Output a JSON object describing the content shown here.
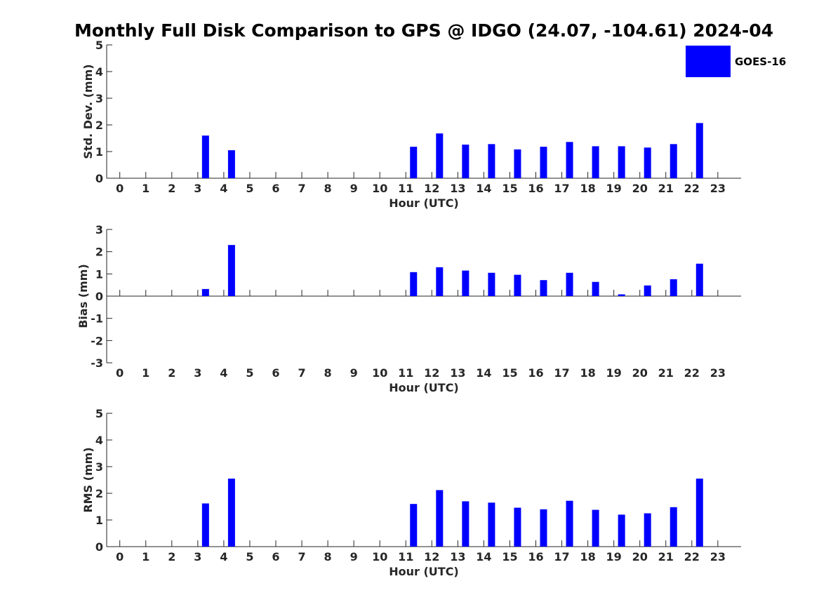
{
  "title": "Monthly Full Disk Comparison to GPS @ IDGO (24.07, -104.61) 2024-04",
  "legend": {
    "label": "GOES-16",
    "color": "#0000ff",
    "placement": "top-right"
  },
  "chart_data": [
    {
      "type": "bar",
      "name": "std-dev",
      "ylabel": "Std. Dev. (mm)",
      "xlabel": "Hour (UTC)",
      "ylim": [
        0,
        5
      ],
      "yticks": [
        0,
        1,
        2,
        3,
        4,
        5
      ],
      "categories": [
        "0",
        "1",
        "2",
        "3",
        "4",
        "5",
        "6",
        "7",
        "8",
        "9",
        "10",
        "11",
        "12",
        "13",
        "14",
        "15",
        "16",
        "17",
        "18",
        "19",
        "20",
        "21",
        "22",
        "23"
      ],
      "series": [
        {
          "name": "GOES-16",
          "color": "#0000ff",
          "values": [
            null,
            null,
            null,
            1.6,
            1.05,
            null,
            null,
            null,
            null,
            null,
            null,
            1.18,
            1.68,
            1.26,
            1.28,
            1.08,
            1.18,
            1.36,
            1.2,
            1.2,
            1.15,
            1.28,
            2.07,
            null
          ]
        }
      ],
      "grid": false
    },
    {
      "type": "bar",
      "name": "bias",
      "ylabel": "Bias (mm)",
      "xlabel": "Hour (UTC)",
      "ylim": [
        -3,
        3
      ],
      "yticks": [
        -3,
        -2,
        -1,
        0,
        1,
        2,
        3
      ],
      "categories": [
        "0",
        "1",
        "2",
        "3",
        "4",
        "5",
        "6",
        "7",
        "8",
        "9",
        "10",
        "11",
        "12",
        "13",
        "14",
        "15",
        "16",
        "17",
        "18",
        "19",
        "20",
        "21",
        "22",
        "23"
      ],
      "series": [
        {
          "name": "GOES-16",
          "color": "#0000ff",
          "values": [
            null,
            null,
            null,
            0.32,
            2.3,
            null,
            null,
            null,
            null,
            null,
            null,
            1.08,
            1.3,
            1.15,
            1.05,
            0.96,
            0.72,
            1.05,
            0.64,
            0.08,
            0.48,
            0.76,
            1.46,
            null
          ]
        }
      ],
      "grid": false
    },
    {
      "type": "bar",
      "name": "rms",
      "ylabel": "RMS (mm)",
      "xlabel": "Hour (UTC)",
      "ylim": [
        0,
        5
      ],
      "yticks": [
        0,
        1,
        2,
        3,
        4,
        5
      ],
      "categories": [
        "0",
        "1",
        "2",
        "3",
        "4",
        "5",
        "6",
        "7",
        "8",
        "9",
        "10",
        "11",
        "12",
        "13",
        "14",
        "15",
        "16",
        "17",
        "18",
        "19",
        "20",
        "21",
        "22",
        "23"
      ],
      "series": [
        {
          "name": "GOES-16",
          "color": "#0000ff",
          "values": [
            null,
            null,
            null,
            1.62,
            2.55,
            null,
            null,
            null,
            null,
            null,
            null,
            1.6,
            2.12,
            1.7,
            1.65,
            1.46,
            1.4,
            1.72,
            1.38,
            1.2,
            1.25,
            1.48,
            2.55,
            null
          ]
        }
      ],
      "grid": false
    }
  ]
}
